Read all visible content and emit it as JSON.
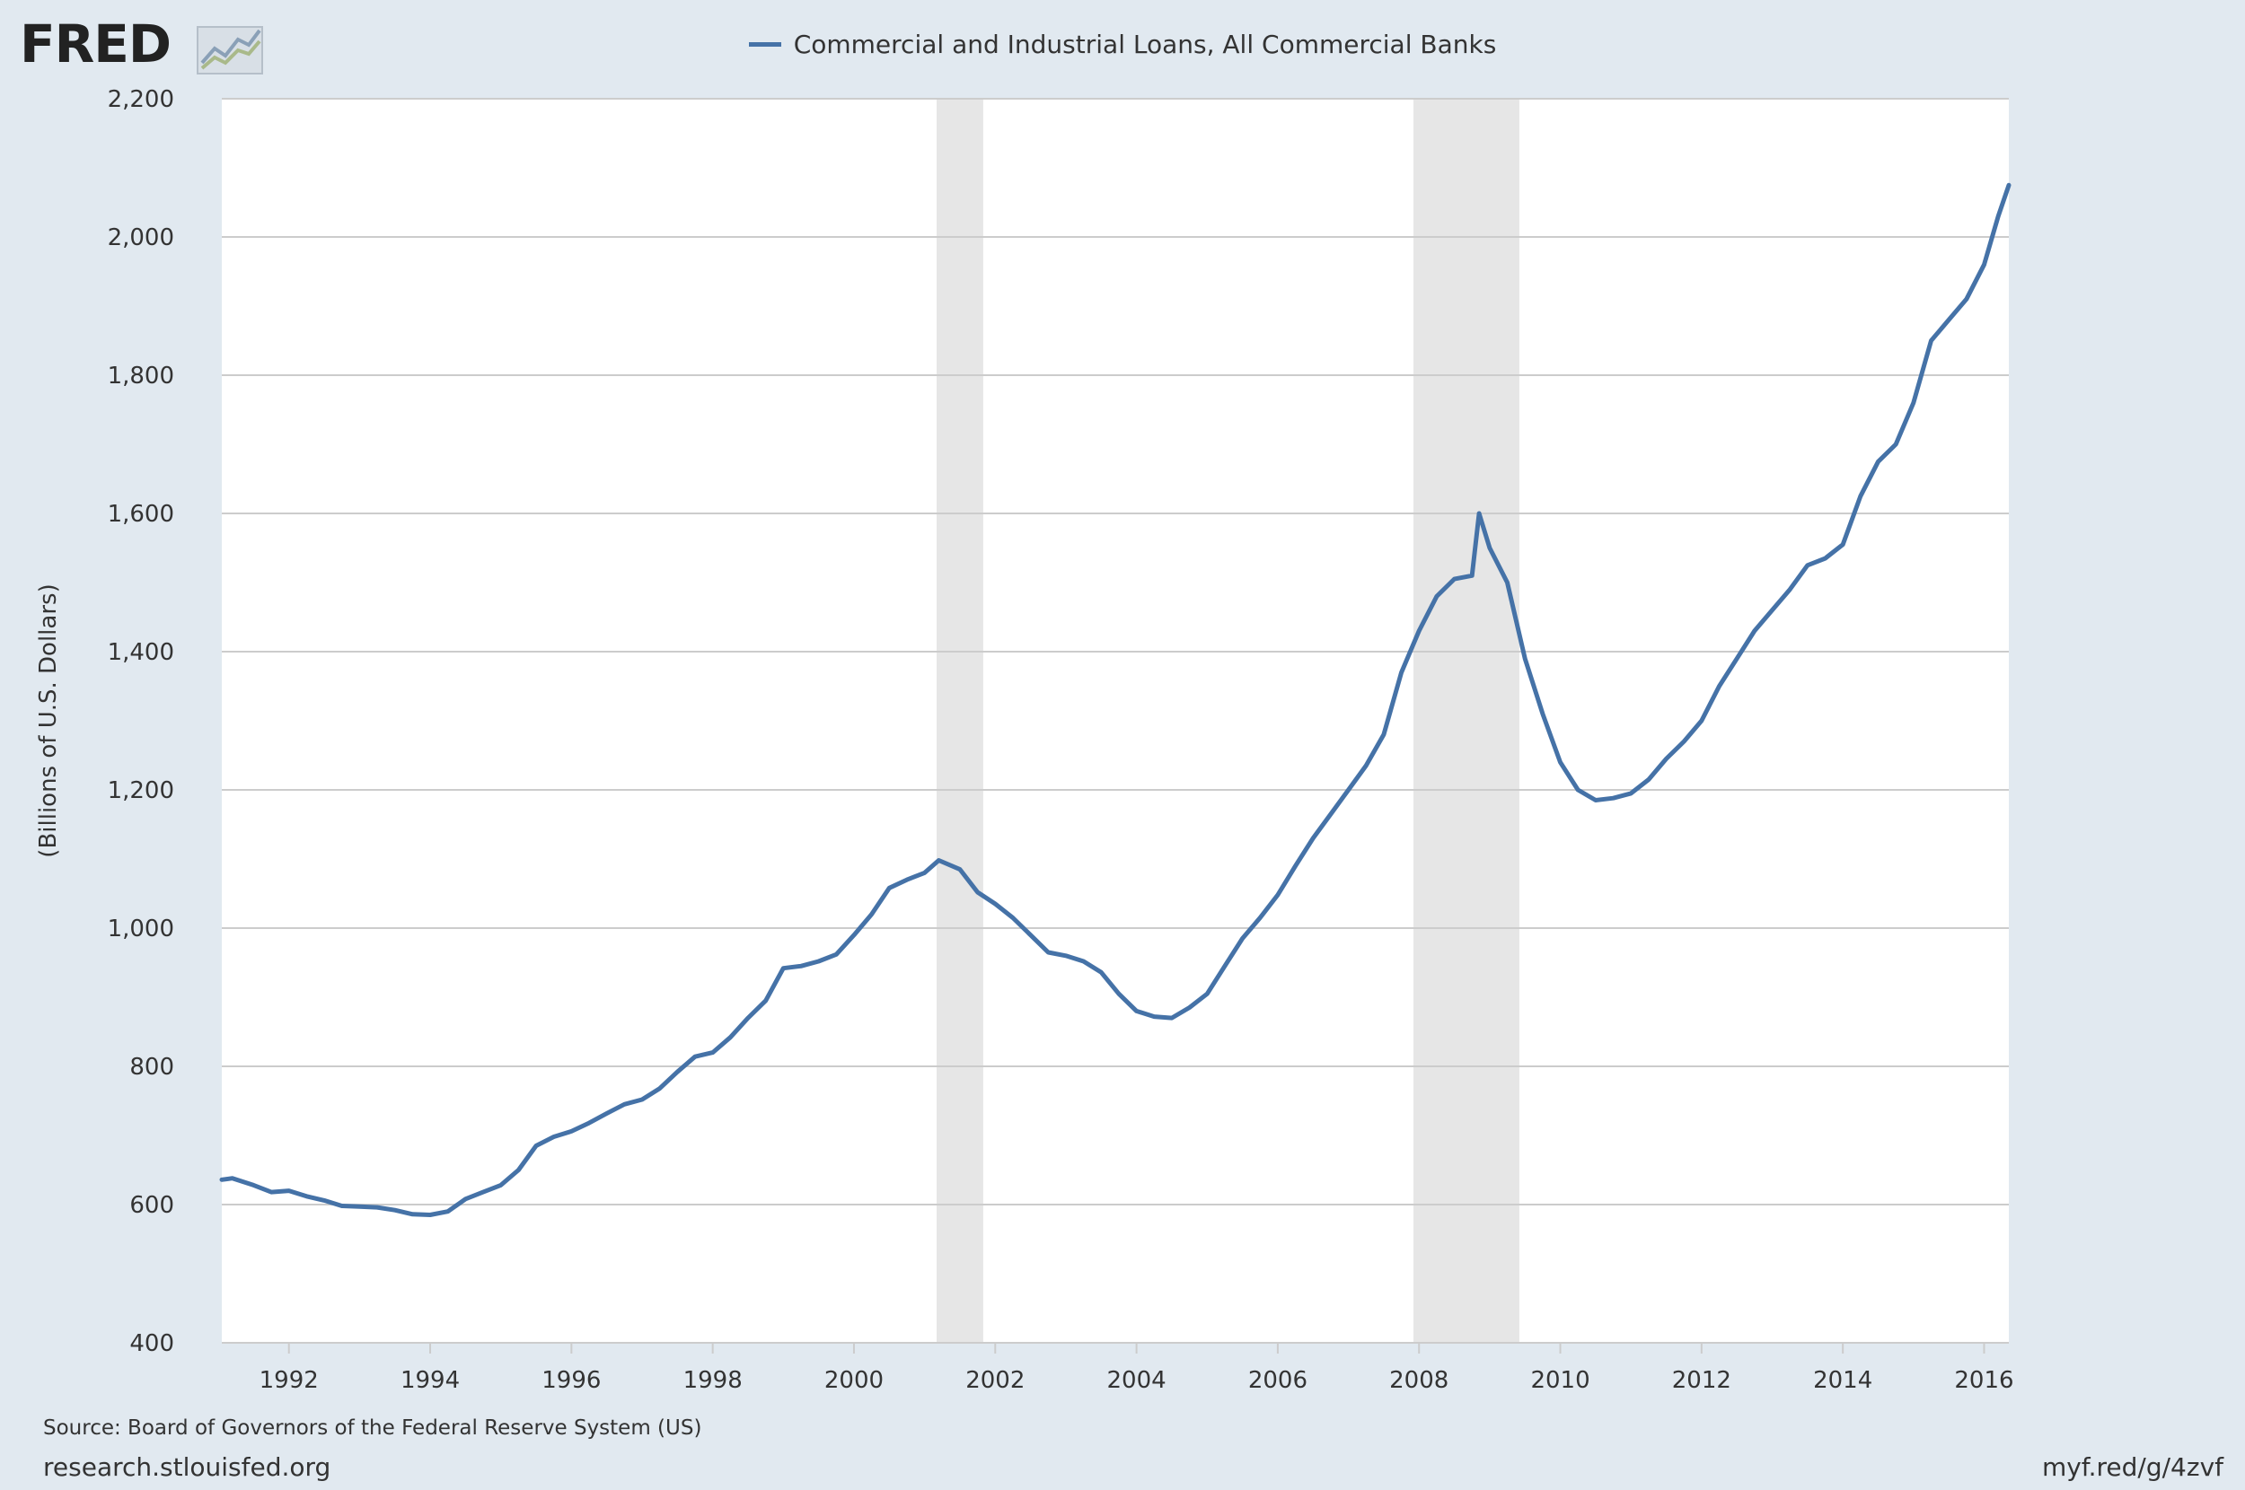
{
  "logo": {
    "text": "FRED",
    "icon": "fred-line-chart-icon"
  },
  "footer": {
    "source": "Source: Board of Governors of the Federal Reserve System (US)",
    "site": "research.stlouisfed.org",
    "shortlink": "myf.red/g/4zvf"
  },
  "chart_data": {
    "type": "line",
    "title": "",
    "legend": [
      "Commercial and Industrial Loans, All Commercial Banks"
    ],
    "legend_placement": "top-center",
    "ylabel": "(Billions of U.S. Dollars)",
    "xlabel": "",
    "xlim": [
      1991.05,
      2016.35
    ],
    "ylim": [
      400,
      2200
    ],
    "yticks": [
      400,
      600,
      800,
      1000,
      1200,
      1400,
      1600,
      1800,
      2000,
      2200
    ],
    "yticklabels": [
      "400",
      "600",
      "800",
      "1,000",
      "1,200",
      "1,400",
      "1,600",
      "1,800",
      "2,000",
      "2,200"
    ],
    "xticks": [
      1992,
      1994,
      1996,
      1998,
      2000,
      2002,
      2004,
      2006,
      2008,
      2010,
      2012,
      2014,
      2016
    ],
    "xticklabels": [
      "1992",
      "1994",
      "1996",
      "1998",
      "2000",
      "2002",
      "2004",
      "2006",
      "2008",
      "2010",
      "2012",
      "2014",
      "2016"
    ],
    "grid": "horizontal",
    "colors": {
      "line": "#4572a7",
      "recession": "#e6e6e6",
      "grid": "#cccccc"
    },
    "recessions": [
      {
        "start": 2001.17,
        "end": 2001.83
      },
      {
        "start": 2007.92,
        "end": 2009.42
      }
    ],
    "series": [
      {
        "name": "Commercial and Industrial Loans, All Commercial Banks",
        "x": [
          1991.05,
          1991.2,
          1991.5,
          1991.75,
          1992.0,
          1992.25,
          1992.5,
          1992.75,
          1993.0,
          1993.25,
          1993.5,
          1993.75,
          1994.0,
          1994.25,
          1994.5,
          1994.75,
          1995.0,
          1995.25,
          1995.5,
          1995.75,
          1996.0,
          1996.25,
          1996.5,
          1996.75,
          1997.0,
          1997.25,
          1997.5,
          1997.75,
          1998.0,
          1998.25,
          1998.5,
          1998.75,
          1999.0,
          1999.25,
          1999.5,
          1999.75,
          2000.0,
          2000.25,
          2000.5,
          2000.75,
          2001.0,
          2001.2,
          2001.5,
          2001.75,
          2002.0,
          2002.25,
          2002.5,
          2002.75,
          2003.0,
          2003.25,
          2003.5,
          2003.75,
          2004.0,
          2004.25,
          2004.5,
          2004.75,
          2005.0,
          2005.25,
          2005.5,
          2005.75,
          2006.0,
          2006.25,
          2006.5,
          2006.75,
          2007.0,
          2007.25,
          2007.5,
          2007.75,
          2008.0,
          2008.25,
          2008.5,
          2008.75,
          2008.85,
          2009.0,
          2009.25,
          2009.5,
          2009.75,
          2010.0,
          2010.25,
          2010.5,
          2010.75,
          2011.0,
          2011.25,
          2011.5,
          2011.75,
          2012.0,
          2012.25,
          2012.5,
          2012.75,
          2013.0,
          2013.25,
          2013.5,
          2013.75,
          2014.0,
          2014.25,
          2014.5,
          2014.75,
          2015.0,
          2015.25,
          2015.5,
          2015.75,
          2016.0,
          2016.2,
          2016.35
        ],
        "y": [
          636,
          638,
          628,
          618,
          620,
          612,
          606,
          598,
          597,
          596,
          592,
          586,
          585,
          590,
          608,
          618,
          628,
          650,
          685,
          698,
          706,
          718,
          732,
          745,
          752,
          768,
          792,
          814,
          820,
          842,
          870,
          895,
          942,
          945,
          952,
          962,
          990,
          1020,
          1058,
          1070,
          1080,
          1098,
          1085,
          1052,
          1035,
          1015,
          990,
          965,
          960,
          952,
          936,
          905,
          880,
          872,
          870,
          885,
          905,
          945,
          985,
          1015,
          1048,
          1090,
          1130,
          1165,
          1200,
          1235,
          1280,
          1370,
          1430,
          1480,
          1505,
          1510,
          1600,
          1550,
          1500,
          1390,
          1310,
          1240,
          1200,
          1185,
          1188,
          1195,
          1215,
          1245,
          1270,
          1300,
          1350,
          1390,
          1430,
          1460,
          1490,
          1525,
          1535,
          1555,
          1625,
          1675,
          1700,
          1760,
          1850,
          1880,
          1910,
          1960,
          2030,
          2075
        ]
      }
    ]
  }
}
